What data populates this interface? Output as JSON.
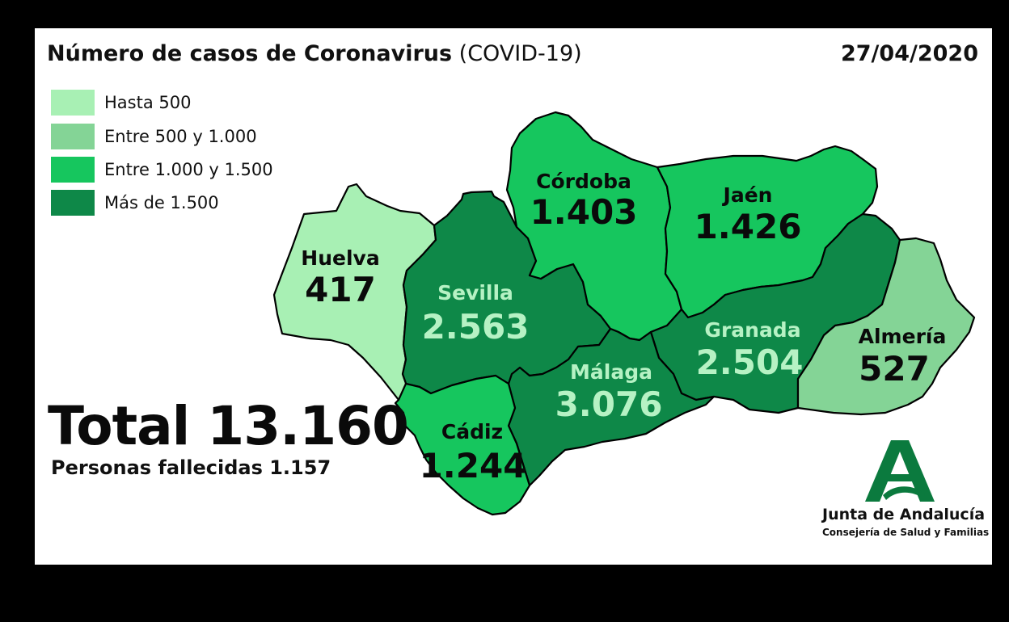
{
  "header": {
    "title_main": "Número de casos de Coronavirus",
    "title_sub": "(COVID-19)",
    "date": "27/04/2020"
  },
  "legend": [
    {
      "label": "Hasta 500",
      "color": "#a8f0b4"
    },
    {
      "label": "Entre 500 y 1.000",
      "color": "#84d496"
    },
    {
      "label": "Entre 1.000 y 1.500",
      "color": "#16c65e"
    },
    {
      "label": "Más de 1.500",
      "color": "#0e8848"
    }
  ],
  "provinces": [
    {
      "name": "Huelva",
      "value": "417",
      "cases": 417,
      "color": "#a8f0b4",
      "text_color": "#0a0a0a"
    },
    {
      "name": "Sevilla",
      "value": "2.563",
      "cases": 2563,
      "color": "#0e8848",
      "text_color": "#b6f2c4"
    },
    {
      "name": "Córdoba",
      "value": "1.403",
      "cases": 1403,
      "color": "#16c65e",
      "text_color": "#0a0a0a"
    },
    {
      "name": "Jaén",
      "value": "1.426",
      "cases": 1426,
      "color": "#16c65e",
      "text_color": "#0a0a0a"
    },
    {
      "name": "Granada",
      "value": "2.504",
      "cases": 2504,
      "color": "#0e8848",
      "text_color": "#b6f2c4"
    },
    {
      "name": "Almería",
      "value": "527",
      "cases": 527,
      "color": "#84d496",
      "text_color": "#0a0a0a"
    },
    {
      "name": "Málaga",
      "value": "3.076",
      "cases": 3076,
      "color": "#0e8848",
      "text_color": "#b6f2c4"
    },
    {
      "name": "Cádiz",
      "value": "1.244",
      "cases": 1244,
      "color": "#16c65e",
      "text_color": "#0a0a0a"
    }
  ],
  "summary": {
    "total": "Total 13.160",
    "deaths": "Personas fallecidas 1.157"
  },
  "logo": {
    "name": "Junta de Andalucía",
    "subtitle": "Consejería de Salud y Familias",
    "color": "#0b7a3e"
  }
}
